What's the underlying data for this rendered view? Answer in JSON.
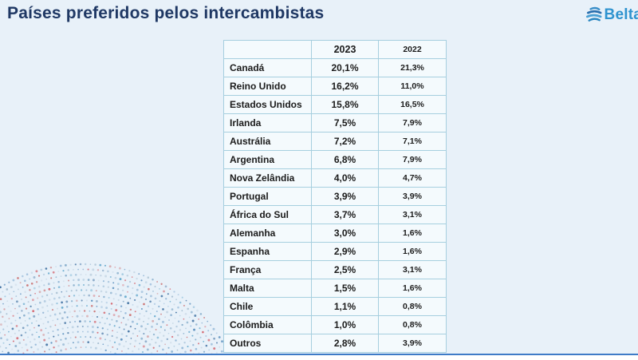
{
  "page": {
    "title": "Países preferidos pelos intercambistas",
    "brand": "Belta"
  },
  "colors": {
    "title_text": "#1f3864",
    "brand_blue": "#2e93cf",
    "background": "#e8f1f9",
    "table_border": "#a6cfdf",
    "cell_background": "#f4fafd",
    "bottom_line": "#3e7bc7"
  },
  "chart_data": {
    "type": "table",
    "title": "Países preferidos pelos intercambistas",
    "columns": [
      "",
      "2023",
      "2022"
    ],
    "rows": [
      [
        "Canadá",
        "20,1%",
        "21,3%"
      ],
      [
        "Reino Unido",
        "16,2%",
        "11,0%"
      ],
      [
        "Estados Unidos",
        "15,8%",
        "16,5%"
      ],
      [
        "Irlanda",
        "7,5%",
        "7,9%"
      ],
      [
        "Austrália",
        "7,2%",
        "7,1%"
      ],
      [
        "Argentina",
        "6,8%",
        "7,9%"
      ],
      [
        "Nova Zelândia",
        "4,0%",
        "4,7%"
      ],
      [
        "Portugal",
        "3,9%",
        "3,9%"
      ],
      [
        "África do Sul",
        "3,7%",
        "3,1%"
      ],
      [
        "Alemanha",
        "3,0%",
        "1,6%"
      ],
      [
        "Espanha",
        "2,9%",
        "1,6%"
      ],
      [
        "França",
        "2,5%",
        "3,1%"
      ],
      [
        "Malta",
        "1,5%",
        "1,6%"
      ],
      [
        "Chile",
        "1,1%",
        "0,8%"
      ],
      [
        "Colômbia",
        "1,0%",
        "0,8%"
      ],
      [
        "Outros",
        "2,8%",
        "3,9%"
      ]
    ]
  }
}
